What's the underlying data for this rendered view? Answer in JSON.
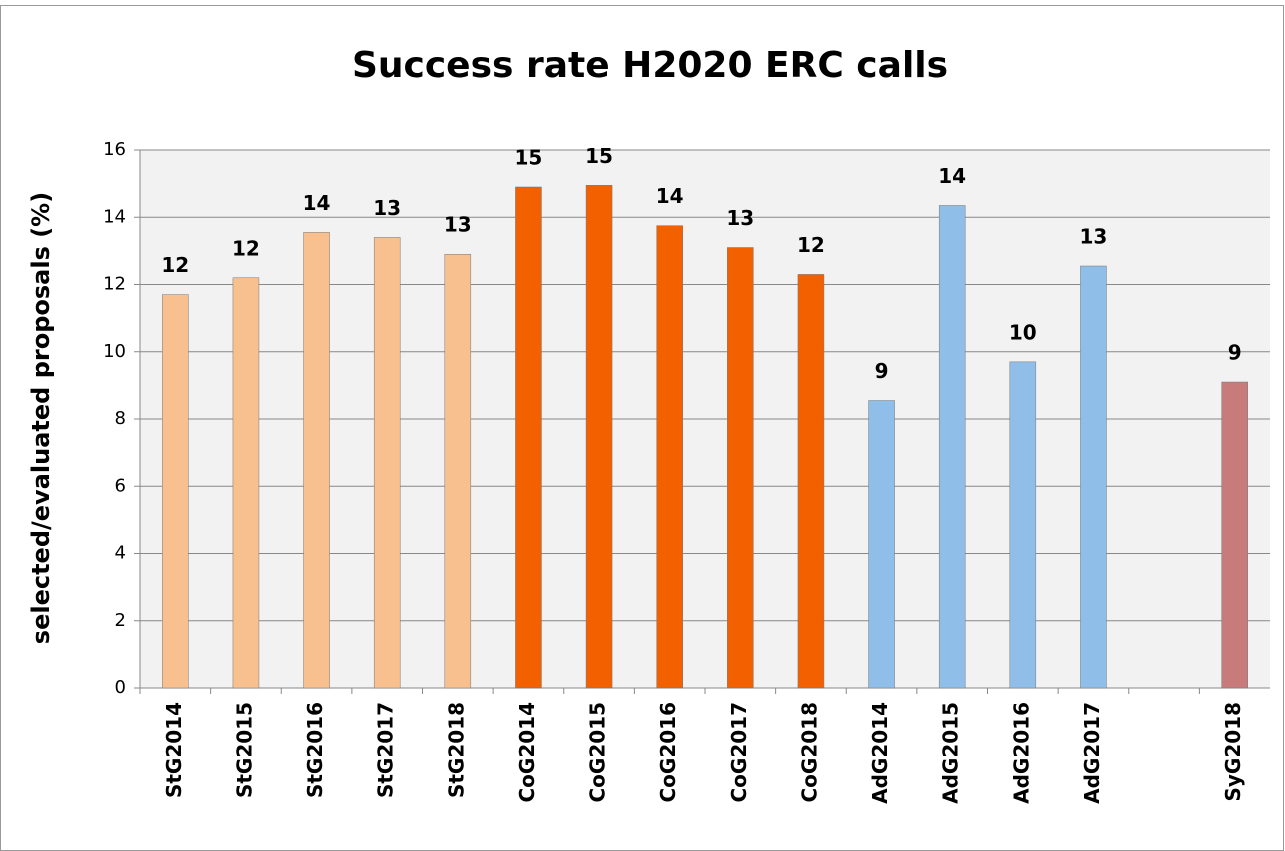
{
  "chart_data": {
    "type": "bar",
    "title": "Success rate H2020 ERC calls",
    "y_label": "selected/evaluated proposals (%)",
    "categories": [
      "StG2014",
      "StG2015",
      "StG2016",
      "StG2017",
      "StG2018",
      "CoG2014",
      "CoG2015",
      "CoG2016",
      "CoG2017",
      "CoG2018",
      "AdG2014",
      "AdG2015",
      "AdG2016",
      "AdG2017",
      null,
      "SyG2018"
    ],
    "values": [
      11.7,
      12.2,
      13.55,
      13.4,
      12.9,
      14.9,
      14.95,
      13.75,
      13.1,
      12.3,
      8.55,
      14.35,
      9.7,
      12.55,
      null,
      9.1
    ],
    "value_labels": [
      "12",
      "12",
      "14",
      "13",
      "13",
      "15",
      "15",
      "14",
      "13",
      "12",
      "9",
      "14",
      "10",
      "13",
      null,
      "9"
    ],
    "colors": [
      "#f9c08f",
      "#f9c08f",
      "#f9c08f",
      "#f9c08f",
      "#f9c08f",
      "#f26000",
      "#f26000",
      "#f26000",
      "#f26000",
      "#f26000",
      "#8fbfe8",
      "#8fbfe8",
      "#8fbfe8",
      "#8fbfe8",
      null,
      "#c87b7b"
    ],
    "ylim": [
      0,
      16
    ],
    "yticks": [
      0,
      2,
      4,
      6,
      8,
      10,
      12,
      14,
      16
    ],
    "grid": true
  }
}
